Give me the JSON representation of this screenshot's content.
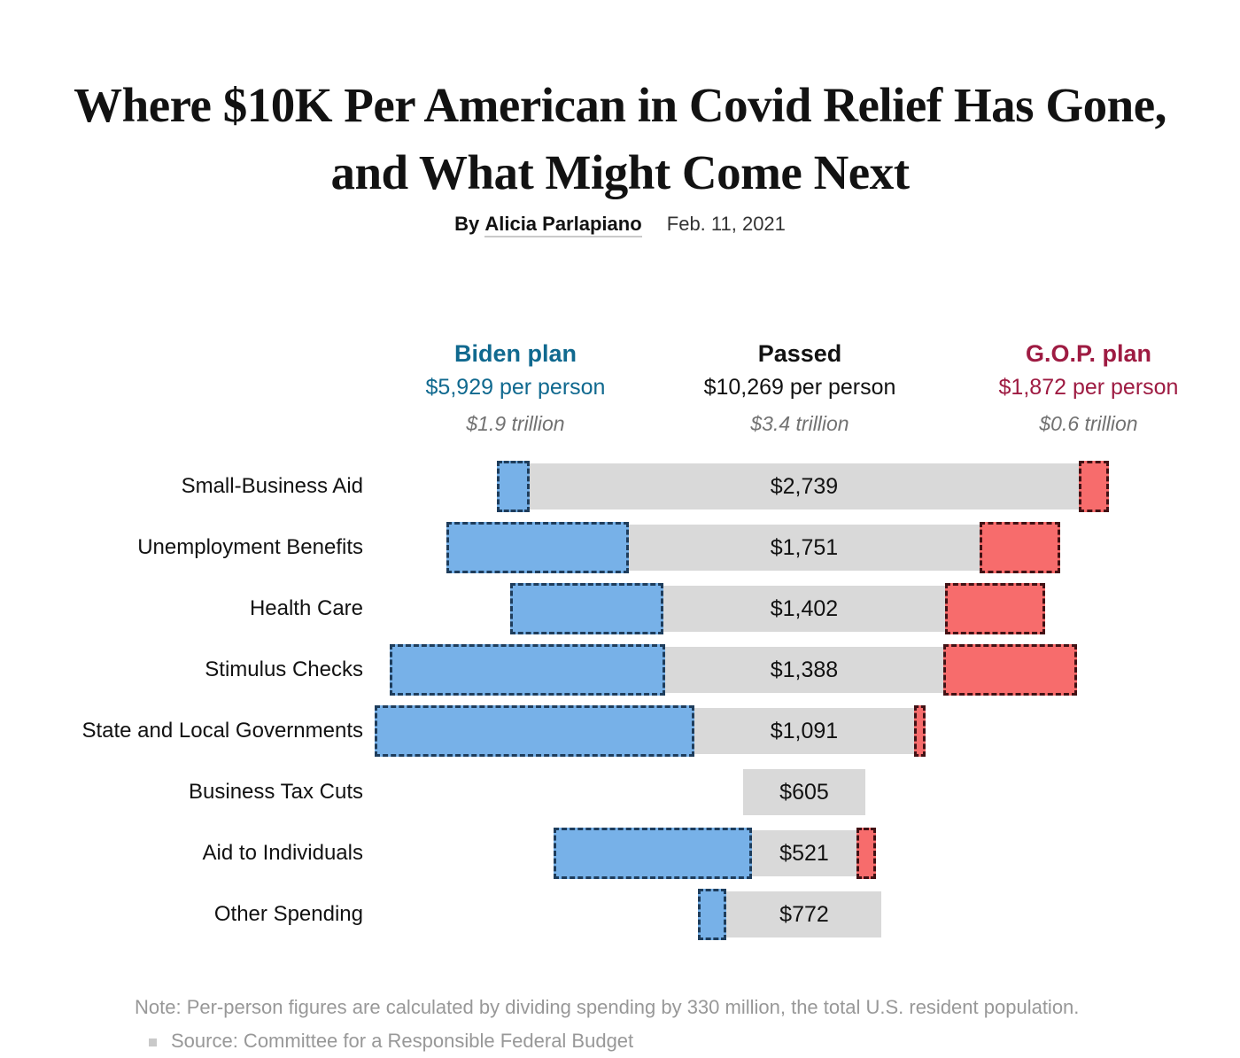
{
  "page": {
    "title": "Where $10K Per American in Covid Relief Has Gone, and What Might Come Next",
    "byline_prefix": "By",
    "author": "Alicia Parlapiano",
    "date": "Feb. 11, 2021"
  },
  "chart_data": {
    "type": "bar",
    "orientation": "horizontal-diverging",
    "title": "Where $10K Per American in Covid Relief Has Gone, and What Might Come Next",
    "unit": "dollars per person",
    "columns": {
      "biden": {
        "label": "Biden plan",
        "per_person": "$5,929 per person",
        "total": "$1.9 trillion",
        "color": "#10698f"
      },
      "passed": {
        "label": "Passed",
        "per_person": "$10,269 per person",
        "total": "$3.4 trillion",
        "color": "#121212"
      },
      "gop": {
        "label": "G.O.P. plan",
        "per_person": "$1,872 per person",
        "total": "$0.6 trillion",
        "color": "#9e1b42"
      }
    },
    "categories": [
      "Small-Business Aid",
      "Unemployment Benefits",
      "Health Care",
      "Stimulus Checks",
      "State and Local Governments",
      "Business Tax Cuts",
      "Aid to Individuals",
      "Other Spending"
    ],
    "series": [
      {
        "name": "Biden plan",
        "values": [
          160,
          905,
          765,
          1370,
          1595,
          0,
          990,
          144
        ],
        "estimated_from_bar_widths": true,
        "fill": "#77b1e8",
        "border": "#1e3d5c"
      },
      {
        "name": "Passed",
        "values": [
          2739,
          1751,
          1402,
          1388,
          1091,
          605,
          521,
          772
        ],
        "labels": [
          "$2,739",
          "$1,751",
          "$1,402",
          "$1,388",
          "$1,091",
          "$605",
          "$521",
          "$772"
        ],
        "fill": "#d9d9d9"
      },
      {
        "name": "G.O.P. plan",
        "values": [
          150,
          400,
          500,
          665,
          60,
          0,
          97,
          0
        ],
        "estimated_from_bar_widths": true,
        "fill": "#f76c6c",
        "border": "#421114"
      }
    ],
    "legend_position": "top",
    "grid": false,
    "note": "Note: Per-person figures are calculated by dividing spending by 330 million, the total U.S. resident population.",
    "source": "Source: Committee for a Responsible Federal Budget"
  }
}
